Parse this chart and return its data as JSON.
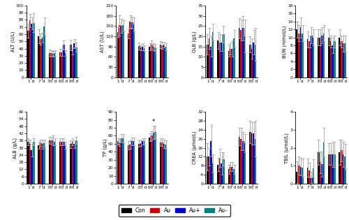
{
  "timepoints": [
    "1 d",
    "7 d",
    "30 d",
    "60 d",
    "90 d"
  ],
  "groups": [
    "Con",
    "Au",
    "Au+",
    "Au-"
  ],
  "colors": [
    "#000000",
    "#cc0000",
    "#0000cc",
    "#008080"
  ],
  "subplots": [
    {
      "ylabel": "ALT (U/L)",
      "ylim": [
        0,
        100
      ],
      "yticks": [
        0,
        10,
        20,
        30,
        40,
        50,
        60,
        70,
        80,
        90,
        100
      ],
      "values": [
        [
          65,
          57,
          34,
          35,
          45
        ],
        [
          79,
          53,
          34,
          35,
          37
        ],
        [
          75,
          55,
          33,
          45,
          47
        ],
        [
          76,
          71,
          34,
          34,
          42
        ]
      ],
      "errors": [
        [
          10,
          10,
          5,
          5,
          7
        ],
        [
          9,
          8,
          4,
          5,
          5
        ],
        [
          8,
          7,
          4,
          6,
          6
        ],
        [
          13,
          12,
          4,
          4,
          6
        ]
      ],
      "star": null
    },
    {
      "ylabel": "AST (U/L)",
      "ylim": [
        0,
        210
      ],
      "yticks": [
        0,
        30,
        60,
        90,
        120,
        150,
        180,
        210
      ],
      "values": [
        [
          132,
          128,
          92,
          90,
          95
        ],
        [
          152,
          163,
          88,
          95,
          93
        ],
        [
          150,
          160,
          90,
          90,
          95
        ],
        [
          152,
          155,
          85,
          88,
          90
        ]
      ],
      "errors": [
        [
          15,
          15,
          10,
          10,
          10
        ],
        [
          30,
          18,
          8,
          12,
          10
        ],
        [
          20,
          18,
          10,
          10,
          8
        ],
        [
          15,
          20,
          8,
          10,
          10
        ]
      ],
      "star": null
    },
    {
      "ylabel": "GLB (g/L)",
      "ylim": [
        0,
        35
      ],
      "yticks": [
        0,
        5,
        10,
        15,
        20,
        25,
        30,
        35
      ],
      "values": [
        [
          16,
          18,
          13,
          24,
          16
        ],
        [
          19,
          17,
          14,
          23,
          14
        ],
        [
          15,
          17,
          14,
          24,
          17
        ],
        [
          22,
          21,
          19,
          20,
          16
        ]
      ],
      "errors": [
        [
          5,
          4,
          3,
          5,
          4
        ],
        [
          5,
          4,
          3,
          5,
          5
        ],
        [
          5,
          4,
          4,
          6,
          6
        ],
        [
          4,
          4,
          4,
          8,
          8
        ]
      ],
      "star": null
    },
    {
      "ylabel": "BUN (mmol/L)",
      "ylim": [
        0,
        18
      ],
      "yticks": [
        0,
        2,
        4,
        6,
        8,
        10,
        12,
        14,
        16,
        18
      ],
      "values": [
        [
          12,
          9.5,
          10,
          10,
          10
        ],
        [
          11,
          9,
          10,
          9,
          9
        ],
        [
          12.5,
          10.5,
          10.5,
          8,
          8.5
        ],
        [
          11,
          10,
          11,
          9,
          8.5
        ]
      ],
      "errors": [
        [
          2,
          2,
          2,
          2,
          2
        ],
        [
          2,
          1.5,
          2,
          1.5,
          1.5
        ],
        [
          2.5,
          2,
          2,
          2,
          2
        ],
        [
          2,
          2,
          2,
          1.5,
          2
        ]
      ],
      "star": null
    },
    {
      "ylabel": "ALB (g/L)",
      "ylim": [
        0,
        60
      ],
      "yticks": [
        0,
        6,
        12,
        18,
        24,
        30,
        36,
        42,
        48,
        54,
        60
      ],
      "values": [
        [
          35,
          32,
          36,
          35,
          33
        ],
        [
          33,
          34,
          36,
          35,
          35
        ],
        [
          28,
          33,
          36,
          35,
          33
        ],
        [
          35,
          34,
          35,
          32,
          36
        ]
      ],
      "errors": [
        [
          3,
          3,
          3,
          3,
          3
        ],
        [
          4,
          3,
          3,
          3,
          3
        ],
        [
          5,
          4,
          4,
          3,
          3
        ],
        [
          3,
          3,
          3,
          3,
          3
        ]
      ],
      "star": null
    },
    {
      "ylabel": "TP (g/L)",
      "ylim": [
        0,
        90
      ],
      "yticks": [
        0,
        10,
        20,
        30,
        40,
        50,
        60,
        70,
        80,
        90
      ],
      "values": [
        [
          53,
          48,
          50,
          58,
          52
        ],
        [
          52,
          49,
          51,
          60,
          52
        ],
        [
          57,
          53,
          53,
          64,
          50
        ],
        [
          57,
          53,
          53,
          65,
          49
        ]
      ],
      "errors": [
        [
          4,
          5,
          4,
          5,
          5
        ],
        [
          5,
          5,
          4,
          6,
          5
        ],
        [
          5,
          5,
          4,
          8,
          5
        ],
        [
          5,
          5,
          4,
          8,
          5
        ]
      ],
      "star": [
        null,
        null,
        null,
        2,
        null
      ]
    },
    {
      "ylabel": "CREA (μmol/L)",
      "ylim": [
        0,
        32
      ],
      "yticks": [
        0,
        4,
        8,
        12,
        16,
        20,
        24,
        28,
        32
      ],
      "values": [
        [
          12,
          8.5,
          6.5,
          21,
          23
        ],
        [
          12,
          11.5,
          7.5,
          20,
          22.5
        ],
        [
          19,
          9,
          7.5,
          19,
          22.5
        ],
        [
          9,
          11,
          6.5,
          18,
          20
        ]
      ],
      "errors": [
        [
          6,
          3,
          2,
          4,
          5
        ],
        [
          4,
          4,
          2,
          5,
          5
        ],
        [
          7,
          5,
          2,
          4,
          5
        ],
        [
          4,
          3,
          2,
          4,
          8
        ]
      ],
      "star": null
    },
    {
      "ylabel": "TBIL (μmol/L)",
      "ylim": [
        0,
        4
      ],
      "yticks": [
        0,
        1,
        2,
        3,
        4
      ],
      "values": [
        [
          0.65,
          0.9,
          1.75,
          1.65,
          1.75
        ],
        [
          1.0,
          0.75,
          1.2,
          1.65,
          1.85
        ],
        [
          0.95,
          0.35,
          1.1,
          1.65,
          1.65
        ],
        [
          0.9,
          0.85,
          2.3,
          1.65,
          1.5
        ]
      ],
      "errors": [
        [
          0.6,
          0.5,
          0.7,
          0.6,
          0.7
        ],
        [
          0.5,
          0.4,
          0.6,
          0.6,
          0.6
        ],
        [
          0.5,
          0.3,
          0.7,
          0.7,
          0.7
        ],
        [
          0.5,
          0.5,
          0.8,
          0.7,
          0.7
        ]
      ],
      "star": null
    }
  ],
  "legend_labels": [
    "Con",
    "Au",
    "Au+",
    "Au-"
  ],
  "legend_colors": [
    "#000000",
    "#cc0000",
    "#0000cc",
    "#008080"
  ],
  "background": "#ffffff"
}
